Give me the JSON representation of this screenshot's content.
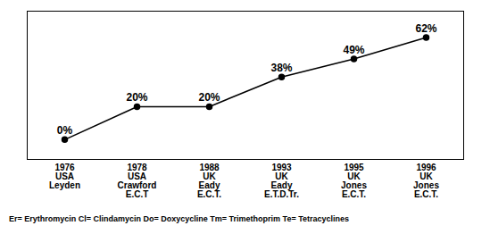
{
  "chart_data": {
    "type": "line",
    "categories": [
      "1976\nUSA\nLeyden",
      "1978\nUSA\nCrawford\nE.C.T",
      "1988\nUK\nEady\nE.C.T.",
      "1993\nUK\nEady\nE.T.D.Tr.",
      "1995\nUK\nJones\nE.C.T.",
      "1996\nUK\nJones\nE.C.T."
    ],
    "values": [
      0,
      20,
      20,
      38,
      49,
      62
    ],
    "value_labels": [
      "0%",
      "20%",
      "20%",
      "38%",
      "49%",
      "62%"
    ],
    "data_labels": true,
    "color": "#000000",
    "marker": "circle",
    "ylim": [
      -12,
      78
    ],
    "tick_labels": "x",
    "caption": "Er= Erythromycin  Cl= Clindamycin  Do= Doxycycline  Tm= Trimethoprim  Te= Tetracyclines"
  }
}
